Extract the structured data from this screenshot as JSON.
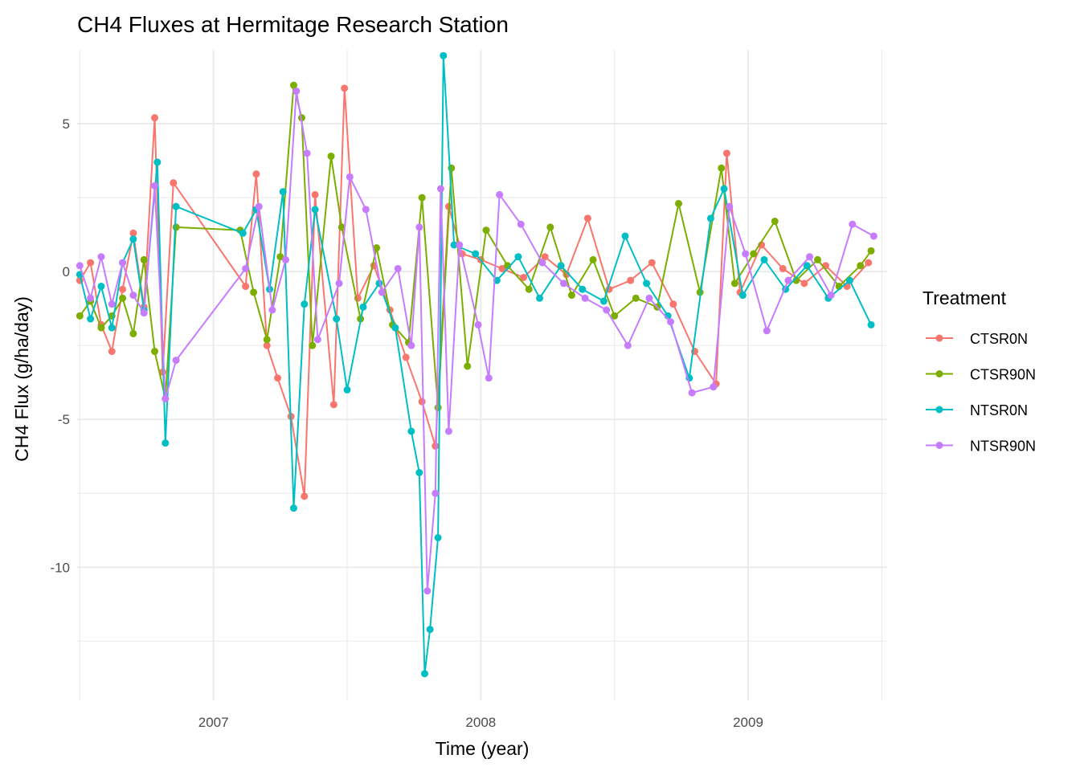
{
  "chart_data": {
    "type": "line",
    "title": "CH4 Fluxes at Hermitage Research Station",
    "xlabel": "Time (year)",
    "ylabel": "CH4 Flux (g/ha/day)",
    "x_ticks": [
      2007,
      2008,
      2009
    ],
    "y_ticks": [
      5,
      0,
      -5,
      -10
    ],
    "y_tick_labels": [
      "5",
      "0",
      "-5",
      "-10"
    ],
    "xlim": [
      2006.49,
      2009.52
    ],
    "ylim": [
      -14.5,
      7.5
    ],
    "grid": true,
    "legend": {
      "title": "Treatment",
      "placement": "right"
    },
    "colors": {
      "CTSR0N": "#F8766D",
      "CTSR90N": "#7CAE00",
      "NTSR0N": "#00BFC4",
      "NTSR90N": "#C77CFF"
    },
    "series": [
      {
        "name": "CTSR0N",
        "x": [
          2006.5,
          2006.54,
          2006.58,
          2006.62,
          2006.66,
          2006.7,
          2006.74,
          2006.78,
          2006.81,
          2006.85,
          2007.12,
          2007.16,
          2007.2,
          2007.24,
          2007.29,
          2007.34,
          2007.38,
          2007.45,
          2007.49,
          2007.54,
          2007.6,
          2007.66,
          2007.72,
          2007.78,
          2007.83,
          2007.88,
          2007.93,
          2008.0,
          2008.08,
          2008.16,
          2008.24,
          2008.32,
          2008.4,
          2008.48,
          2008.56,
          2008.64,
          2008.72,
          2008.8,
          2008.88,
          2008.92,
          2008.97,
          2009.05,
          2009.13,
          2009.21,
          2009.29,
          2009.37,
          2009.45
        ],
        "y": [
          -0.3,
          0.3,
          -1.8,
          -2.7,
          -0.6,
          1.3,
          -1.2,
          5.2,
          -3.4,
          3.0,
          -0.5,
          3.3,
          -2.5,
          -3.6,
          -4.9,
          -7.6,
          2.6,
          -4.5,
          6.2,
          -0.9,
          0.2,
          -1.3,
          -2.9,
          -4.4,
          -5.9,
          2.2,
          0.6,
          0.4,
          0.1,
          -0.2,
          0.5,
          -0.1,
          1.8,
          -0.6,
          -0.3,
          0.3,
          -1.1,
          -2.7,
          -3.8,
          4.0,
          -0.7,
          0.9,
          0.1,
          -0.4,
          0.2,
          -0.5,
          0.3
        ]
      },
      {
        "name": "CTSR90N",
        "x": [
          2006.5,
          2006.54,
          2006.58,
          2006.62,
          2006.66,
          2006.7,
          2006.74,
          2006.78,
          2006.82,
          2006.86,
          2007.1,
          2007.15,
          2007.2,
          2007.25,
          2007.3,
          2007.33,
          2007.37,
          2007.44,
          2007.48,
          2007.55,
          2007.61,
          2007.67,
          2007.73,
          2007.78,
          2007.84,
          2007.89,
          2007.95,
          2008.02,
          2008.1,
          2008.18,
          2008.26,
          2008.34,
          2008.42,
          2008.5,
          2008.58,
          2008.66,
          2008.74,
          2008.82,
          2008.9,
          2008.95,
          2009.02,
          2009.1,
          2009.18,
          2009.26,
          2009.34,
          2009.42,
          2009.46
        ],
        "y": [
          -1.5,
          -1.0,
          -1.9,
          -1.5,
          -0.9,
          -2.1,
          0.4,
          -2.7,
          -4.3,
          1.5,
          1.4,
          -0.7,
          -2.3,
          0.5,
          6.3,
          5.2,
          -2.5,
          3.9,
          1.5,
          -1.6,
          0.8,
          -1.8,
          -2.4,
          2.5,
          -4.6,
          3.5,
          -3.2,
          1.4,
          0.2,
          -0.6,
          1.5,
          -0.8,
          0.4,
          -1.5,
          -0.9,
          -1.2,
          2.3,
          -0.7,
          3.5,
          -0.4,
          0.6,
          1.7,
          -0.3,
          0.4,
          -0.5,
          0.2,
          0.7
        ]
      },
      {
        "name": "NTSR0N",
        "x": [
          2006.5,
          2006.54,
          2006.58,
          2006.62,
          2006.66,
          2006.7,
          2006.74,
          2006.79,
          2006.82,
          2006.86,
          2007.11,
          2007.16,
          2007.21,
          2007.26,
          2007.3,
          2007.34,
          2007.38,
          2007.46,
          2007.5,
          2007.56,
          2007.62,
          2007.68,
          2007.74,
          2007.77,
          2007.79,
          2007.81,
          2007.84,
          2007.86,
          2007.9,
          2007.98,
          2008.06,
          2008.14,
          2008.22,
          2008.3,
          2008.38,
          2008.46,
          2008.54,
          2008.62,
          2008.7,
          2008.78,
          2008.86,
          2008.91,
          2008.98,
          2009.06,
          2009.14,
          2009.22,
          2009.3,
          2009.38,
          2009.46
        ],
        "y": [
          -0.1,
          -1.6,
          -0.5,
          -1.9,
          0.3,
          1.1,
          -1.3,
          3.7,
          -5.8,
          2.2,
          1.3,
          2.1,
          -0.6,
          2.7,
          -8.0,
          -1.1,
          2.1,
          -1.6,
          -4.0,
          -1.2,
          -0.4,
          -1.9,
          -5.4,
          -6.8,
          -13.6,
          -12.1,
          -9.0,
          7.3,
          0.9,
          0.6,
          -0.3,
          0.5,
          -0.9,
          0.2,
          -0.6,
          -1.0,
          1.2,
          -0.4,
          -1.5,
          -3.6,
          1.8,
          2.8,
          -0.8,
          0.4,
          -0.6,
          0.2,
          -0.9,
          -0.3,
          -1.8
        ]
      },
      {
        "name": "NTSR90N",
        "x": [
          2006.5,
          2006.54,
          2006.58,
          2006.62,
          2006.66,
          2006.7,
          2006.74,
          2006.78,
          2006.82,
          2006.86,
          2007.12,
          2007.17,
          2007.22,
          2007.27,
          2007.31,
          2007.35,
          2007.39,
          2007.47,
          2007.51,
          2007.57,
          2007.63,
          2007.69,
          2007.74,
          2007.77,
          2007.8,
          2007.83,
          2007.85,
          2007.88,
          2007.92,
          2007.99,
          2008.03,
          2008.07,
          2008.15,
          2008.23,
          2008.31,
          2008.39,
          2008.47,
          2008.55,
          2008.63,
          2008.71,
          2008.79,
          2008.87,
          2008.93,
          2008.99,
          2009.07,
          2009.15,
          2009.23,
          2009.31,
          2009.39,
          2009.47
        ],
        "y": [
          0.2,
          -0.9,
          0.5,
          -1.1,
          0.3,
          -0.8,
          -1.4,
          2.9,
          -4.3,
          -3.0,
          0.1,
          2.2,
          -1.3,
          0.4,
          6.1,
          4.0,
          -2.3,
          -0.4,
          3.2,
          2.1,
          -0.7,
          0.1,
          -2.5,
          1.5,
          -10.8,
          -7.5,
          2.8,
          -5.4,
          0.9,
          -1.8,
          -3.6,
          2.6,
          1.6,
          0.3,
          -0.4,
          -0.9,
          -1.3,
          -2.5,
          -0.9,
          -1.7,
          -4.1,
          -3.9,
          2.2,
          0.6,
          -2.0,
          -0.3,
          0.5,
          -0.8,
          1.6,
          1.2
        ]
      }
    ]
  }
}
